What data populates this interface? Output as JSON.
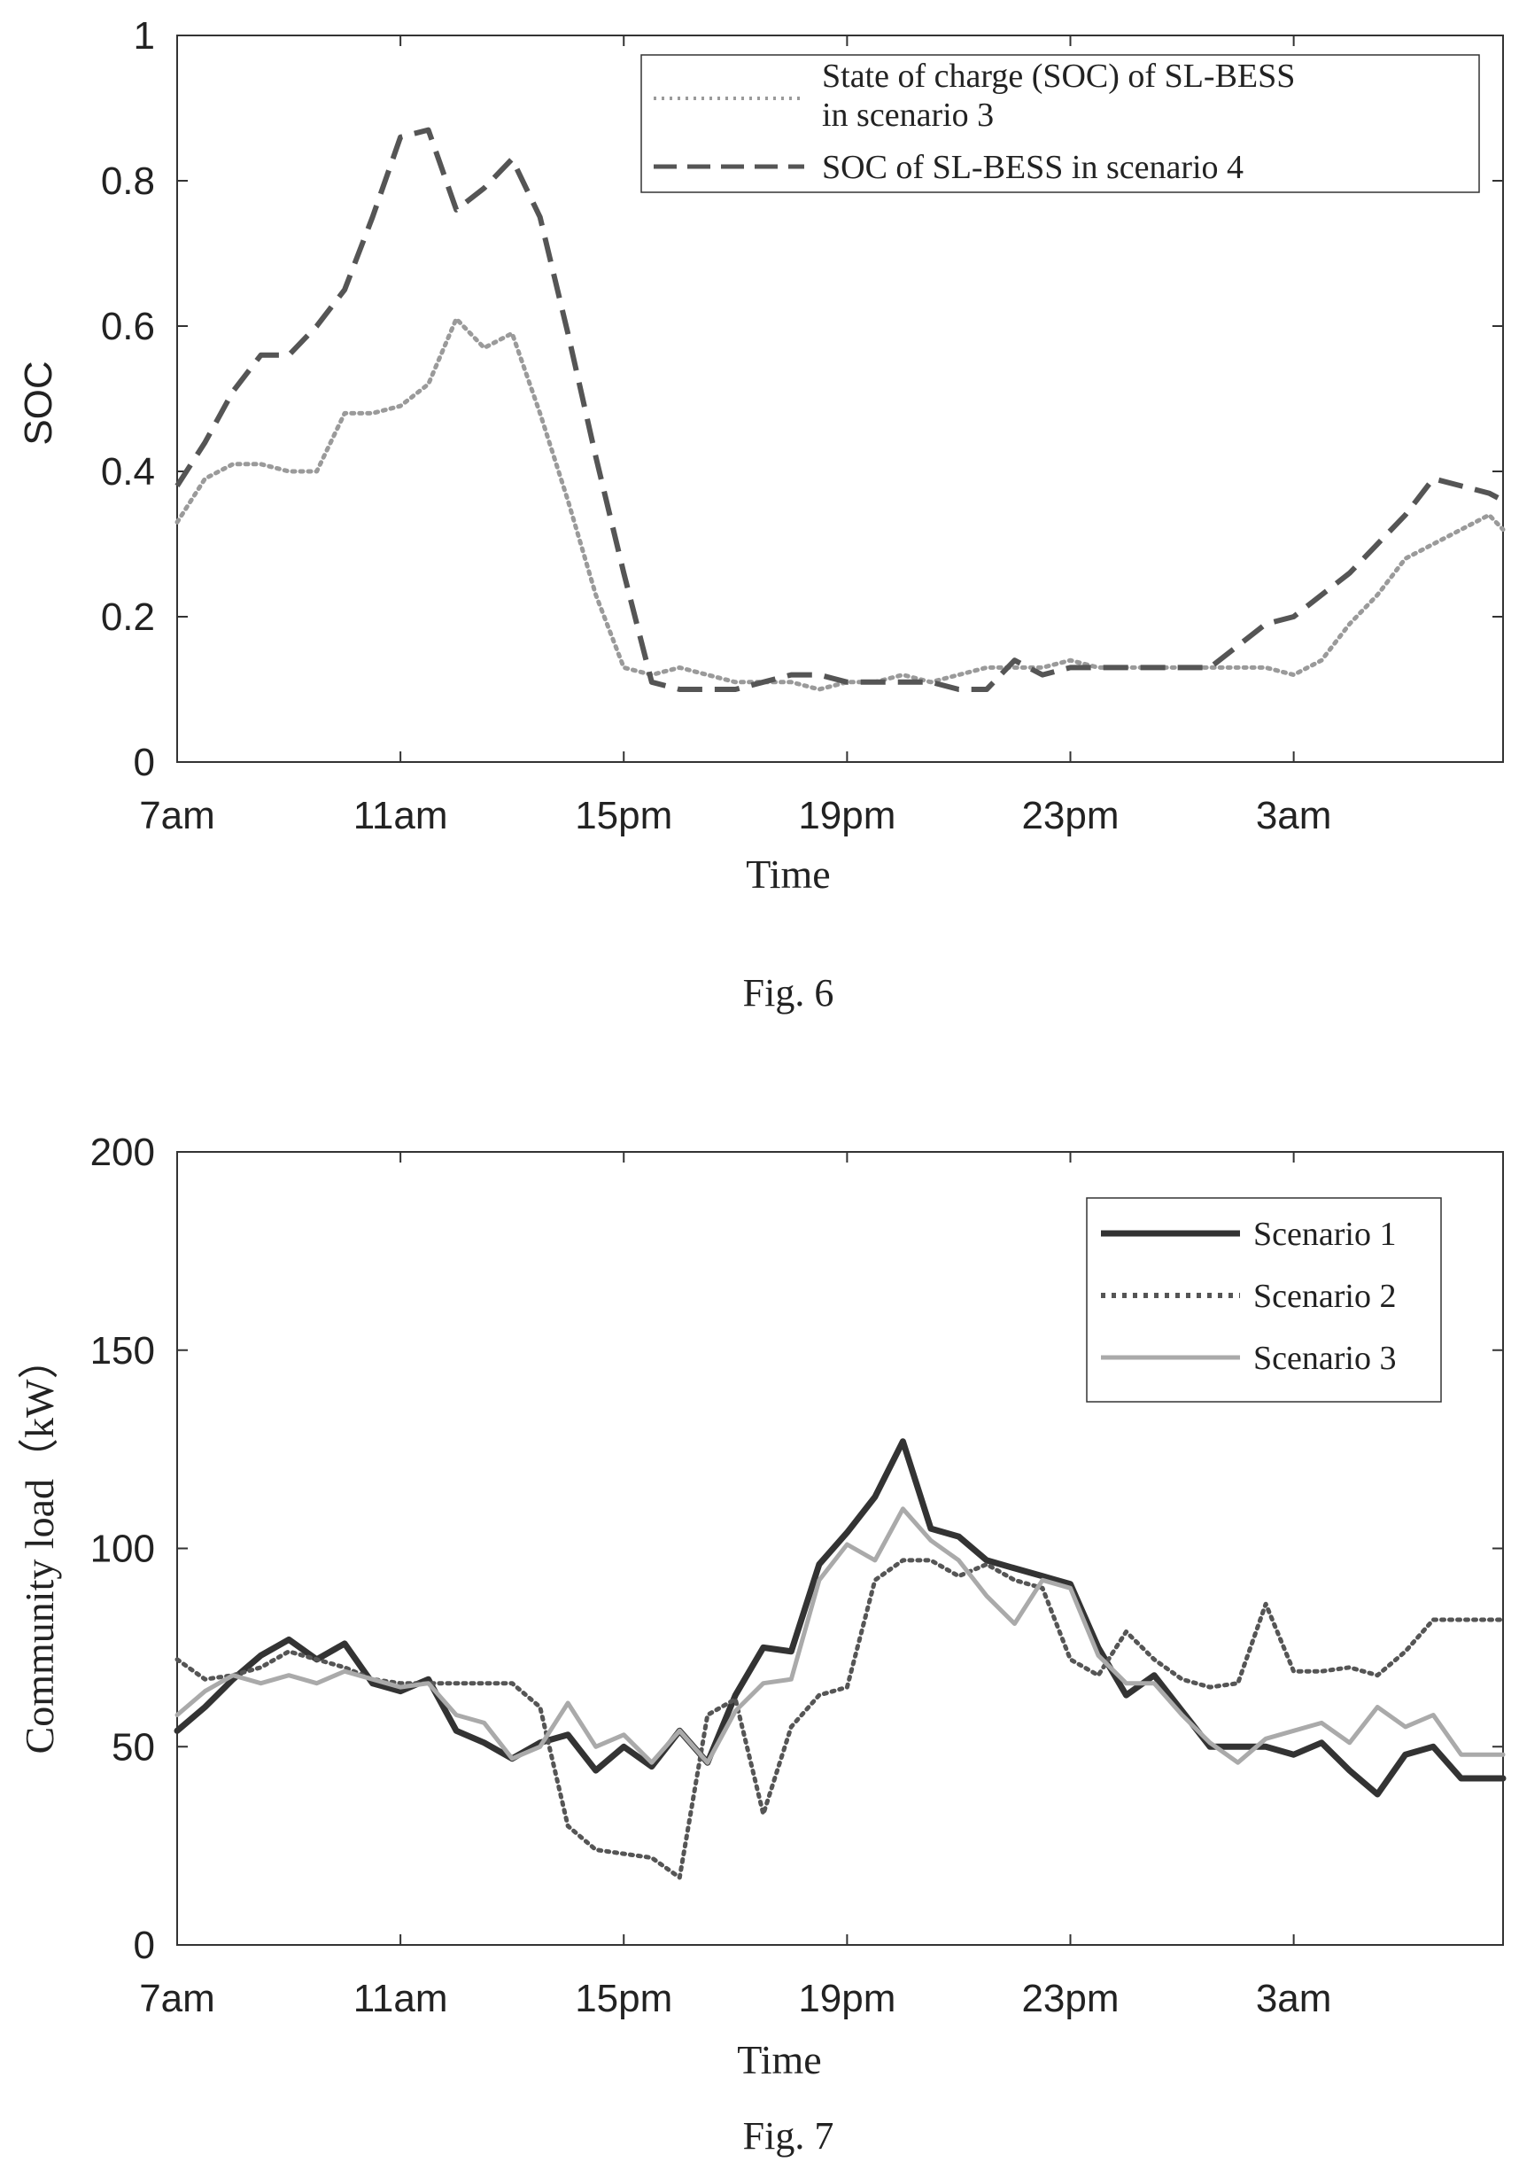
{
  "chart_data": [
    {
      "type": "line",
      "caption": "Fig. 6",
      "xlabel": "Time",
      "ylabel": "SOC",
      "ylim": [
        0,
        1
      ],
      "yticks": [
        "0",
        "0.2",
        "0.4",
        "0.6",
        "0.8",
        "1"
      ],
      "xticks": [
        "7am",
        "11am",
        "15pm",
        "19pm",
        "23pm",
        "3am"
      ],
      "xlim": [
        0,
        23.75
      ],
      "legend_position": "top-right",
      "series": [
        {
          "name": "State of charge (SOC) of SL-BESS in scenario 3",
          "legend_lines": [
            "State of charge (SOC) of SL-BESS",
            "in scenario 3"
          ],
          "style": "dotted",
          "color": "#9a9a9a",
          "x": [
            0,
            0.5,
            1,
            1.5,
            2,
            2.5,
            3,
            3.5,
            4,
            4.5,
            5,
            5.5,
            6,
            6.5,
            7,
            7.5,
            8,
            8.5,
            9,
            9.5,
            10,
            10.5,
            11,
            11.5,
            12,
            12.5,
            13,
            13.5,
            14,
            14.5,
            15,
            15.5,
            16,
            16.5,
            17,
            17.5,
            18,
            18.5,
            19,
            19.5,
            20,
            20.5,
            21,
            21.5,
            22,
            22.5,
            23,
            23.5,
            23.75
          ],
          "y": [
            0.33,
            0.39,
            0.41,
            0.41,
            0.4,
            0.4,
            0.48,
            0.48,
            0.49,
            0.52,
            0.61,
            0.57,
            0.59,
            0.48,
            0.36,
            0.23,
            0.13,
            0.12,
            0.13,
            0.12,
            0.11,
            0.11,
            0.11,
            0.1,
            0.11,
            0.11,
            0.12,
            0.11,
            0.12,
            0.13,
            0.13,
            0.13,
            0.14,
            0.13,
            0.13,
            0.13,
            0.13,
            0.13,
            0.13,
            0.13,
            0.12,
            0.14,
            0.19,
            0.23,
            0.28,
            0.3,
            0.32,
            0.34,
            0.32
          ]
        },
        {
          "name": "SOC of SL-BESS in scenario 4",
          "legend_lines": [
            "SOC of SL-BESS in scenario 4"
          ],
          "style": "dashed",
          "color": "#555555",
          "x": [
            0,
            0.5,
            1,
            1.5,
            2,
            2.5,
            3,
            3.5,
            4,
            4.5,
            5,
            5.5,
            6,
            6.5,
            7,
            7.5,
            8,
            8.5,
            9,
            9.5,
            10,
            10.5,
            11,
            11.5,
            12,
            12.5,
            13,
            13.5,
            14,
            14.5,
            15,
            15.5,
            16,
            16.5,
            17,
            17.5,
            18,
            18.5,
            19,
            19.5,
            20,
            20.5,
            21,
            21.5,
            22,
            22.5,
            23,
            23.5,
            23.75
          ],
          "y": [
            0.38,
            0.44,
            0.51,
            0.56,
            0.56,
            0.6,
            0.65,
            0.75,
            0.86,
            0.87,
            0.76,
            0.79,
            0.83,
            0.75,
            0.59,
            0.42,
            0.26,
            0.11,
            0.1,
            0.1,
            0.1,
            0.11,
            0.12,
            0.12,
            0.11,
            0.11,
            0.11,
            0.11,
            0.1,
            0.1,
            0.14,
            0.12,
            0.13,
            0.13,
            0.13,
            0.13,
            0.13,
            0.13,
            0.16,
            0.19,
            0.2,
            0.23,
            0.26,
            0.3,
            0.34,
            0.39,
            0.38,
            0.37,
            0.36
          ]
        }
      ]
    },
    {
      "type": "line",
      "caption": "Fig. 7",
      "xlabel": "Time",
      "ylabel": "Community load（kW）",
      "ylim": [
        0,
        200
      ],
      "yticks": [
        "0",
        "50",
        "100",
        "150",
        "200"
      ],
      "xticks": [
        "7am",
        "11am",
        "15pm",
        "19pm",
        "23pm",
        "3am"
      ],
      "xlim": [
        0,
        23.75
      ],
      "legend_position": "top-right",
      "series": [
        {
          "name": "Scenario 1",
          "legend_lines": [
            "Scenario 1"
          ],
          "style": "solid-thick",
          "color": "#333333",
          "x": [
            0,
            0.5,
            1,
            1.5,
            2,
            2.5,
            3,
            3.5,
            4,
            4.5,
            5,
            5.5,
            6,
            6.5,
            7,
            7.5,
            8,
            8.5,
            9,
            9.5,
            10,
            10.5,
            11,
            11.5,
            12,
            12.5,
            13,
            13.5,
            14,
            14.5,
            15,
            15.5,
            16,
            16.5,
            17,
            17.5,
            18,
            18.5,
            19,
            19.5,
            20,
            20.5,
            21,
            21.5,
            22,
            22.5,
            23,
            23.5,
            23.75
          ],
          "y": [
            54,
            60,
            67,
            73,
            77,
            72,
            76,
            66,
            64,
            67,
            54,
            51,
            47,
            51,
            53,
            44,
            50,
            45,
            54,
            46,
            63,
            75,
            74,
            96,
            104,
            113,
            127,
            105,
            103,
            97,
            95,
            93,
            91,
            75,
            63,
            68,
            59,
            50,
            50,
            50,
            48,
            51,
            44,
            38,
            48,
            50,
            42,
            42,
            42
          ]
        },
        {
          "name": "Scenario 2",
          "legend_lines": [
            "Scenario 2"
          ],
          "style": "dotted",
          "color": "#555555",
          "x": [
            0,
            0.5,
            1,
            1.5,
            2,
            2.5,
            3,
            3.5,
            4,
            4.5,
            5,
            5.5,
            6,
            6.5,
            7,
            7.5,
            8,
            8.5,
            9,
            9.5,
            10,
            10.5,
            11,
            11.5,
            12,
            12.5,
            13,
            13.5,
            14,
            14.5,
            15,
            15.5,
            16,
            16.5,
            17,
            17.5,
            18,
            18.5,
            19,
            19.5,
            20,
            20.5,
            21,
            21.5,
            22,
            22.5,
            23,
            23.5,
            23.75
          ],
          "y": [
            72,
            67,
            68,
            70,
            74,
            72,
            70,
            67,
            66,
            66,
            66,
            66,
            66,
            60,
            30,
            24,
            23,
            22,
            17,
            58,
            62,
            33,
            55,
            63,
            65,
            92,
            97,
            97,
            93,
            96,
            92,
            90,
            72,
            68,
            79,
            72,
            67,
            65,
            66,
            86,
            69,
            69,
            70,
            68,
            74,
            82,
            82,
            82,
            82
          ]
        },
        {
          "name": "Scenario 3",
          "legend_lines": [
            "Scenario 3"
          ],
          "style": "solid-light",
          "color": "#aaaaaa",
          "x": [
            0,
            0.5,
            1,
            1.5,
            2,
            2.5,
            3,
            3.5,
            4,
            4.5,
            5,
            5.5,
            6,
            6.5,
            7,
            7.5,
            8,
            8.5,
            9,
            9.5,
            10,
            10.5,
            11,
            11.5,
            12,
            12.5,
            13,
            13.5,
            14,
            14.5,
            15,
            15.5,
            16,
            16.5,
            17,
            17.5,
            18,
            18.5,
            19,
            19.5,
            20,
            20.5,
            21,
            21.5,
            22,
            22.5,
            23,
            23.5,
            23.75
          ],
          "y": [
            58,
            64,
            68,
            66,
            68,
            66,
            69,
            67,
            65,
            66,
            58,
            56,
            47,
            50,
            61,
            50,
            53,
            46,
            54,
            46,
            59,
            66,
            67,
            92,
            101,
            97,
            110,
            102,
            97,
            88,
            81,
            92,
            90,
            73,
            66,
            66,
            58,
            51,
            46,
            52,
            54,
            56,
            51,
            60,
            55,
            58,
            48,
            48,
            48
          ]
        }
      ]
    }
  ]
}
